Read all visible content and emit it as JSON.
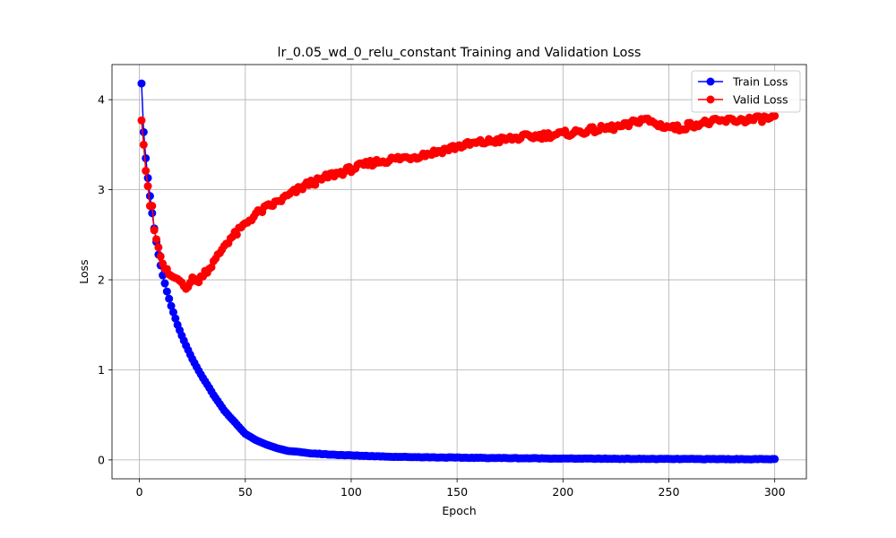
{
  "chart_data": {
    "type": "line",
    "title": "lr_0.05_wd_0_relu_constant Training and Validation Loss",
    "xlabel": "Epoch",
    "ylabel": "Loss",
    "xlim": [
      -12.95,
      314.95
    ],
    "ylim": [
      -0.21,
      4.39
    ],
    "grid": true,
    "legend_position": "top-right",
    "x_ticks": [
      0,
      50,
      100,
      150,
      200,
      250,
      300
    ],
    "y_ticks": [
      0,
      1,
      2,
      3,
      4
    ],
    "x_count": 300,
    "series": [
      {
        "name": "Train Loss",
        "color": "#0000ff",
        "keypoints": [
          [
            1,
            4.18
          ],
          [
            2,
            3.64
          ],
          [
            3,
            3.35
          ],
          [
            4,
            3.13
          ],
          [
            5,
            2.93
          ],
          [
            6,
            2.74
          ],
          [
            7,
            2.57
          ],
          [
            8,
            2.42
          ],
          [
            9,
            2.28
          ],
          [
            10,
            2.16
          ],
          [
            11,
            2.05
          ],
          [
            12,
            1.96
          ],
          [
            13,
            1.87
          ],
          [
            14,
            1.79
          ],
          [
            15,
            1.71
          ],
          [
            16,
            1.64
          ],
          [
            17,
            1.57
          ],
          [
            18,
            1.5
          ],
          [
            19,
            1.44
          ],
          [
            20,
            1.38
          ],
          [
            22,
            1.27
          ],
          [
            25,
            1.12
          ],
          [
            28,
            0.99
          ],
          [
            30,
            0.91
          ],
          [
            33,
            0.8
          ],
          [
            35,
            0.72
          ],
          [
            38,
            0.62
          ],
          [
            40,
            0.55
          ],
          [
            43,
            0.47
          ],
          [
            45,
            0.42
          ],
          [
            48,
            0.34
          ],
          [
            50,
            0.29
          ],
          [
            55,
            0.22
          ],
          [
            60,
            0.17
          ],
          [
            65,
            0.13
          ],
          [
            70,
            0.1
          ],
          [
            75,
            0.09
          ],
          [
            80,
            0.075
          ],
          [
            90,
            0.06
          ],
          [
            100,
            0.05
          ],
          [
            120,
            0.035
          ],
          [
            150,
            0.025
          ],
          [
            200,
            0.015
          ],
          [
            250,
            0.01
          ],
          [
            300,
            0.008
          ]
        ]
      },
      {
        "name": "Valid Loss",
        "color": "#ff0000",
        "keypoints": [
          [
            1,
            3.77
          ],
          [
            2,
            3.5
          ],
          [
            3,
            3.21
          ],
          [
            4,
            3.04
          ],
          [
            5,
            2.82
          ],
          [
            6,
            2.82
          ],
          [
            7,
            2.55
          ],
          [
            8,
            2.45
          ],
          [
            9,
            2.36
          ],
          [
            10,
            2.26
          ],
          [
            11,
            2.18
          ],
          [
            12,
            2.12
          ],
          [
            13,
            2.12
          ],
          [
            14,
            2.06
          ],
          [
            16,
            2.03
          ],
          [
            18,
            2.01
          ],
          [
            20,
            1.97
          ],
          [
            21,
            1.93
          ],
          [
            22,
            1.9
          ],
          [
            23,
            1.95
          ],
          [
            25,
            2.0
          ],
          [
            27,
            2.01
          ],
          [
            28,
            1.97
          ],
          [
            30,
            2.07
          ],
          [
            33,
            2.13
          ],
          [
            36,
            2.22
          ],
          [
            40,
            2.38
          ],
          [
            43,
            2.46
          ],
          [
            46,
            2.52
          ],
          [
            50,
            2.62
          ],
          [
            55,
            2.73
          ],
          [
            60,
            2.8
          ],
          [
            65,
            2.86
          ],
          [
            70,
            2.93
          ],
          [
            75,
            3.0
          ],
          [
            80,
            3.07
          ],
          [
            85,
            3.1
          ],
          [
            90,
            3.16
          ],
          [
            95,
            3.19
          ],
          [
            100,
            3.23
          ],
          [
            110,
            3.3
          ],
          [
            120,
            3.34
          ],
          [
            130,
            3.37
          ],
          [
            140,
            3.42
          ],
          [
            150,
            3.48
          ],
          [
            160,
            3.52
          ],
          [
            170,
            3.55
          ],
          [
            180,
            3.58
          ],
          [
            190,
            3.6
          ],
          [
            200,
            3.62
          ],
          [
            210,
            3.65
          ],
          [
            220,
            3.68
          ],
          [
            230,
            3.71
          ],
          [
            238,
            3.79
          ],
          [
            240,
            3.77
          ],
          [
            245,
            3.72
          ],
          [
            250,
            3.7
          ],
          [
            255,
            3.68
          ],
          [
            260,
            3.72
          ],
          [
            270,
            3.75
          ],
          [
            280,
            3.77
          ],
          [
            290,
            3.78
          ],
          [
            300,
            3.8
          ]
        ]
      }
    ]
  }
}
